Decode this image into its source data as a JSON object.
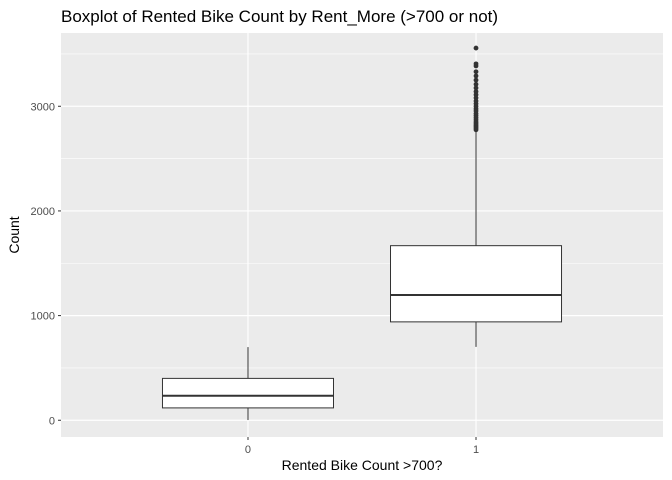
{
  "chart_data": {
    "type": "boxplot",
    "title": "Boxplot of Rented Bike Count by Rent_More (>700 or not)",
    "xlabel": "Rented Bike Count >700?",
    "ylabel": "Count",
    "ylim": [
      -160,
      3700
    ],
    "y_ticks": [
      0,
      1000,
      2000,
      3000
    ],
    "categories": [
      "0",
      "1"
    ],
    "boxes": [
      {
        "category": "0",
        "whisker_low": 2,
        "q1": 118,
        "median": 234,
        "q3": 400,
        "whisker_high": 699,
        "outliers": []
      },
      {
        "category": "1",
        "whisker_low": 701,
        "q1": 940,
        "median": 1197,
        "q3": 1668,
        "whisker_high": 2760,
        "outliers": [
          2775,
          2790,
          2805,
          2820,
          2835,
          2850,
          2870,
          2890,
          2910,
          2930,
          2955,
          2975,
          3000,
          3025,
          3050,
          3080,
          3110,
          3140,
          3175,
          3210,
          3250,
          3290,
          3330,
          3385,
          3405,
          3556
        ]
      }
    ],
    "grid": true,
    "background": "#ebebeb",
    "grid_color": "#ffffff",
    "box_fill": "#ffffff",
    "box_stroke": "#333333",
    "outlier_color": "#333333",
    "legend": "none"
  }
}
